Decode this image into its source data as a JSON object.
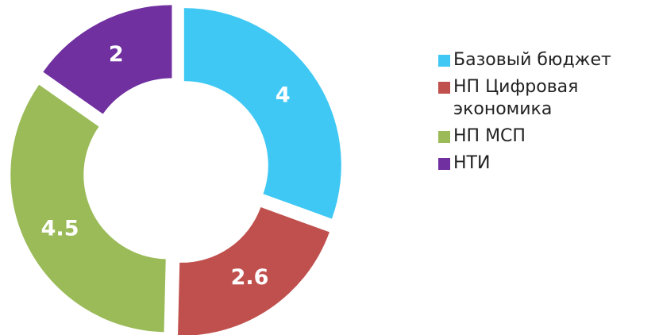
{
  "chart_data": {
    "type": "donut",
    "categories": [
      "Базовый бюджет",
      "НП Цифровая экономика",
      "НП МСП",
      "НТИ"
    ],
    "values": [
      4,
      2.6,
      4.5,
      2
    ],
    "colors": [
      "#3fc8f4",
      "#c0504d",
      "#9bbb59",
      "#7030a0"
    ],
    "legend": "right"
  }
}
